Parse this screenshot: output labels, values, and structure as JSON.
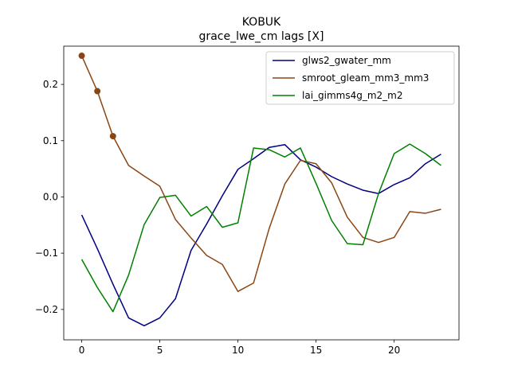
{
  "chart_data": {
    "type": "line",
    "title": "KOBUK",
    "subtitle": "grace_lwe_cm lags [X]",
    "xlabel": "",
    "ylabel": "",
    "xlim": [
      -1.15,
      24.15
    ],
    "ylim": [
      -0.254,
      0.268
    ],
    "xticks": [
      0,
      5,
      10,
      15,
      20
    ],
    "xtick_labels": [
      "0",
      "5",
      "10",
      "15",
      "20"
    ],
    "yticks": [
      -0.2,
      -0.1,
      0.0,
      0.1,
      0.2
    ],
    "ytick_labels": [
      "−0.2",
      "−0.1",
      "0.0",
      "0.1",
      "0.2"
    ],
    "grid": false,
    "legend_position": "top-right",
    "x": [
      0,
      1,
      2,
      3,
      4,
      5,
      6,
      7,
      8,
      9,
      10,
      11,
      12,
      13,
      14,
      15,
      16,
      17,
      18,
      19,
      20,
      21,
      22,
      23
    ],
    "series": [
      {
        "name": "glws2_gwater_mm",
        "color": "#000080",
        "values": [
          -0.032,
          -0.092,
          -0.155,
          -0.215,
          -0.229,
          -0.215,
          -0.181,
          -0.095,
          -0.048,
          0.002,
          0.049,
          0.068,
          0.088,
          0.093,
          0.066,
          0.053,
          0.036,
          0.023,
          0.012,
          0.006,
          0.022,
          0.034,
          0.059,
          0.076
        ]
      },
      {
        "name": "smroot_gleam_mm3_mm3",
        "color": "#8B4513",
        "values": [
          0.251,
          0.188,
          0.108,
          0.056,
          0.037,
          0.019,
          -0.04,
          -0.073,
          -0.104,
          -0.12,
          -0.168,
          -0.153,
          -0.056,
          0.023,
          0.065,
          0.059,
          0.025,
          -0.036,
          -0.072,
          -0.081,
          -0.072,
          -0.026,
          -0.029,
          -0.022
        ],
        "markers": [
          0,
          1,
          2
        ]
      },
      {
        "name": "lai_gimms4g_m2_m2",
        "color": "#008000",
        "values": [
          -0.111,
          -0.161,
          -0.204,
          -0.139,
          -0.049,
          -0.001,
          0.003,
          -0.034,
          -0.017,
          -0.054,
          -0.046,
          0.087,
          0.084,
          0.071,
          0.087,
          0.024,
          -0.042,
          -0.083,
          -0.085,
          0.006,
          0.077,
          0.094,
          0.077,
          0.056
        ]
      }
    ]
  }
}
